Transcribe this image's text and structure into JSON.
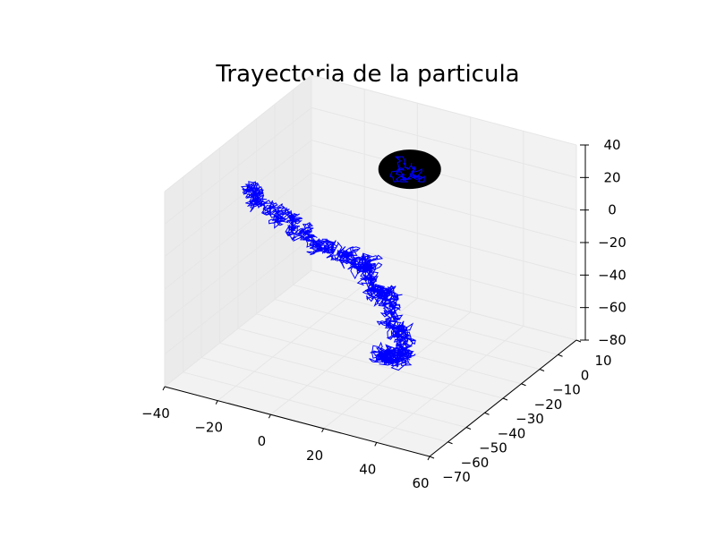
{
  "chart_data": {
    "type": "line3d",
    "title": "Trayectoria de la particula",
    "xlabel": "",
    "ylabel": "",
    "zlabel": "",
    "xlim": [
      -40,
      60
    ],
    "ylim": [
      -70,
      10
    ],
    "zlim": [
      -80,
      40
    ],
    "x_ticks": [
      -40,
      -20,
      0,
      20,
      40,
      60
    ],
    "y_ticks": [
      -70,
      -60,
      -50,
      -40,
      -30,
      -20,
      -10,
      0,
      10
    ],
    "z_ticks": [
      -80,
      -60,
      -40,
      -20,
      0,
      20,
      40
    ],
    "x_tick_labels": [
      "−40",
      "−20",
      "0",
      "20",
      "40",
      "60"
    ],
    "y_tick_labels": [
      "−70",
      "−60",
      "−50",
      "−40",
      "−30",
      "−20",
      "−10",
      "0",
      "10"
    ],
    "z_tick_labels": [
      "−80",
      "−60",
      "−40",
      "−20",
      "0",
      "20",
      "40"
    ],
    "grid": true,
    "series": [
      {
        "kind": "random-walk",
        "color": "#0000ff",
        "start": {
          "x": -36,
          "y": -30,
          "z": 10
        },
        "end": {
          "x": 34,
          "y": -52,
          "z": -42
        },
        "x": [
          -36,
          -30,
          -22,
          -14,
          -6,
          2,
          8,
          14,
          22,
          28,
          34,
          36,
          30,
          34
        ],
        "y": [
          -30,
          -32,
          -28,
          -30,
          -26,
          -24,
          -28,
          -34,
          -38,
          -44,
          -46,
          -50,
          -54,
          -52
        ],
        "z": [
          10,
          2,
          -6,
          -14,
          -22,
          -28,
          -24,
          -30,
          -26,
          -34,
          -40,
          -50,
          -46,
          -42
        ]
      },
      {
        "kind": "disk",
        "color": "#000000",
        "center": {
          "x": 4,
          "y": 0,
          "z": 10
        },
        "radius": 10
      }
    ]
  }
}
